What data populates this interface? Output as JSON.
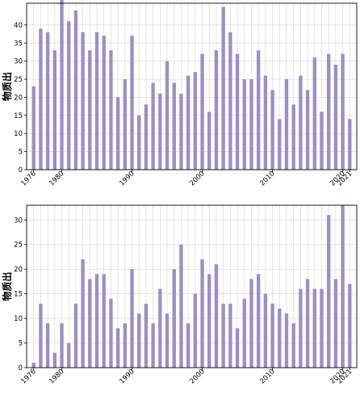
{
  "chart_data": [
    {
      "type": "bar",
      "ylabel": "物质出",
      "x": [
        1976,
        1977,
        1978,
        1979,
        1980,
        1981,
        1982,
        1983,
        1984,
        1985,
        1986,
        1987,
        1988,
        1989,
        1990,
        1991,
        1992,
        1993,
        1994,
        1995,
        1996,
        1997,
        1998,
        1999,
        2000,
        2001,
        2002,
        2003,
        2004,
        2005,
        2006,
        2007,
        2008,
        2009,
        2010,
        2011,
        2012,
        2013,
        2014,
        2015,
        2016,
        2017,
        2018,
        2019,
        2020,
        2021
      ],
      "values": [
        23,
        39,
        38,
        33,
        47,
        41,
        44,
        38,
        33,
        38,
        37,
        33,
        20,
        25,
        37,
        15,
        18,
        24,
        21,
        30,
        24,
        21,
        26,
        27,
        32,
        16,
        33,
        45,
        38,
        32,
        25,
        25,
        33,
        26,
        22,
        14,
        25,
        18,
        26,
        22,
        31,
        16,
        32,
        29,
        32,
        14
      ],
      "ylim": [
        0,
        46
      ],
      "yticks": [
        0,
        5,
        10,
        15,
        20,
        25,
        30,
        35,
        40
      ],
      "xticks": [
        1976,
        1980,
        1990,
        2000,
        2010,
        2020,
        2021
      ],
      "grid": true,
      "bar_color": "#9b8fc4"
    },
    {
      "type": "bar",
      "ylabel": "物质出",
      "x": [
        1976,
        1977,
        1978,
        1979,
        1980,
        1981,
        1982,
        1983,
        1984,
        1985,
        1986,
        1987,
        1988,
        1989,
        1990,
        1991,
        1992,
        1993,
        1994,
        1995,
        1996,
        1997,
        1998,
        1999,
        2000,
        2001,
        2002,
        2003,
        2004,
        2005,
        2006,
        2007,
        2008,
        2009,
        2010,
        2011,
        2012,
        2013,
        2014,
        2015,
        2016,
        2017,
        2018,
        2019,
        2020,
        2021
      ],
      "values": [
        1,
        13,
        9,
        3,
        9,
        5,
        13,
        22,
        18,
        19,
        19,
        14,
        8,
        9,
        20,
        11,
        13,
        9,
        16,
        11,
        20,
        25,
        9,
        15,
        22,
        19,
        21,
        13,
        13,
        8,
        14,
        18,
        19,
        15,
        13,
        12,
        11,
        9,
        16,
        18,
        16,
        16,
        31,
        18,
        33,
        17
      ],
      "ylim": [
        0,
        33
      ],
      "yticks": [
        0,
        5,
        10,
        15,
        20,
        25,
        30
      ],
      "xticks": [
        1976,
        1980,
        1990,
        2000,
        2010,
        2020,
        2021
      ],
      "grid": true,
      "bar_color": "#9b8fc4"
    }
  ]
}
